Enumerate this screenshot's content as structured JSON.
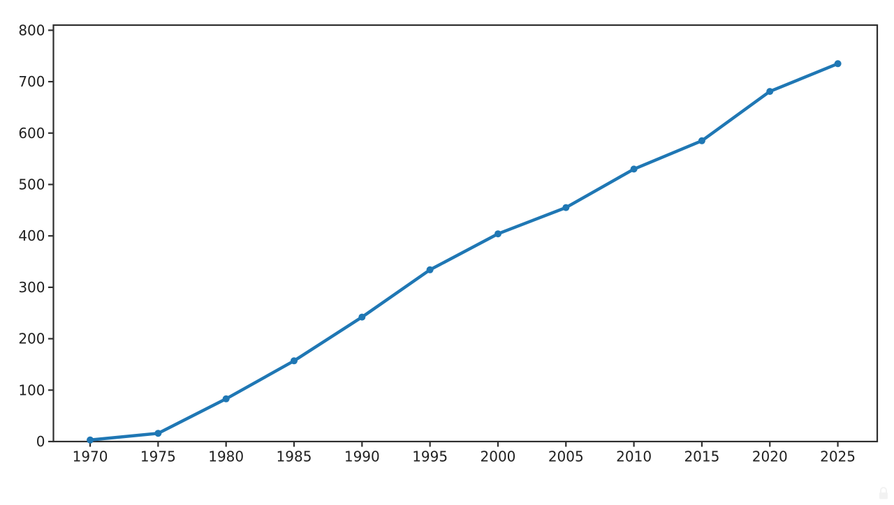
{
  "figure": {
    "background": "#ffffff",
    "plot_background": "#ffffff"
  },
  "chart_data": {
    "type": "line",
    "title": "",
    "xlabel": "",
    "ylabel": "",
    "x": [
      1970,
      1975,
      1980,
      1985,
      1990,
      1995,
      2000,
      2005,
      2010,
      2015,
      2020,
      2025
    ],
    "values": [
      3,
      16,
      83,
      157,
      242,
      334,
      404,
      455,
      530,
      585,
      681,
      735
    ],
    "x_ticks": [
      1970,
      1975,
      1980,
      1985,
      1990,
      1995,
      2000,
      2005,
      2010,
      2015,
      2020,
      2025
    ],
    "y_ticks": [
      0,
      100,
      200,
      300,
      400,
      500,
      600,
      700,
      800
    ],
    "xlim": [
      1967.3,
      2027.9
    ],
    "ylim": [
      0,
      810
    ],
    "grid": false,
    "legend": "none",
    "marker": "circle",
    "line_color": "#1f77b4",
    "axis_color": "#2e2e2e",
    "tick_label_color": "#1f1f1f"
  },
  "watermark": {
    "icon": "padlock",
    "color": "#e9e9e9"
  }
}
